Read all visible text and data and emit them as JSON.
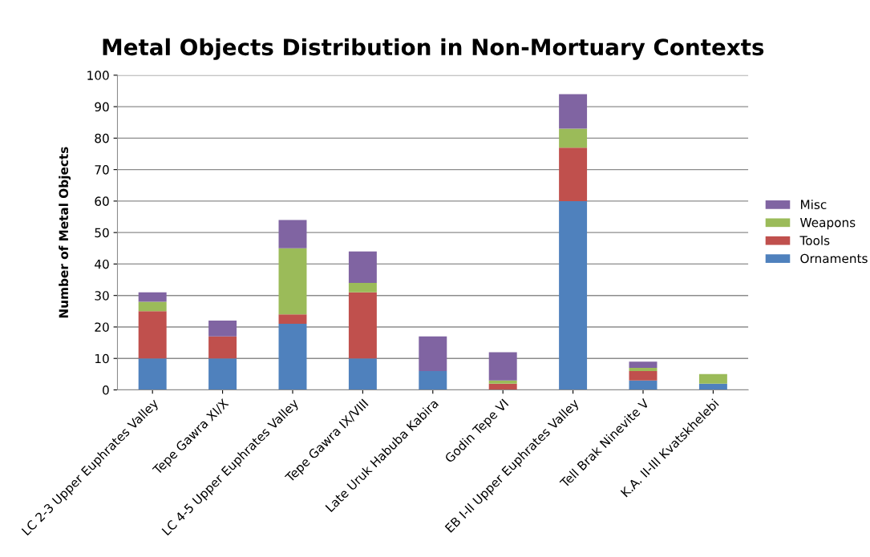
{
  "chart_data": {
    "type": "bar",
    "stacked": true,
    "title": "Metal Objects Distribution in Non-Mortuary Contexts",
    "ylabel": "Number of Metal Objects",
    "categories": [
      "LC 2-3 Upper Euphrates Valley",
      "Tepe Gawra XI/X",
      "LC 4-5 Upper Euphrates Valley",
      "Tepe Gawra IX/VIII",
      "Late Uruk Habuba Kabira",
      "Godin Tepe VI",
      "EB I-II Upper Euphrates Valley",
      "Tell Brak Ninevite V",
      "K.A. II-III Kvatskhelebi"
    ],
    "series": [
      {
        "name": "Ornaments",
        "color": "#4f81bd",
        "values": [
          10,
          10,
          21,
          10,
          6,
          0,
          60,
          3,
          2
        ]
      },
      {
        "name": "Tools",
        "color": "#c0504d",
        "values": [
          15,
          7,
          3,
          21,
          0,
          2,
          17,
          3,
          0
        ]
      },
      {
        "name": "Weapons",
        "color": "#9bbb59",
        "values": [
          3,
          0,
          21,
          3,
          0,
          1,
          6,
          1,
          3
        ]
      },
      {
        "name": "Misc",
        "color": "#8064a2",
        "values": [
          3,
          5,
          9,
          10,
          11,
          9,
          11,
          2,
          0
        ]
      }
    ],
    "ylim": [
      0,
      100
    ],
    "yticks": [
      0,
      10,
      20,
      30,
      40,
      50,
      60,
      70,
      80,
      90,
      100
    ],
    "grid": "y",
    "legend": "right"
  }
}
